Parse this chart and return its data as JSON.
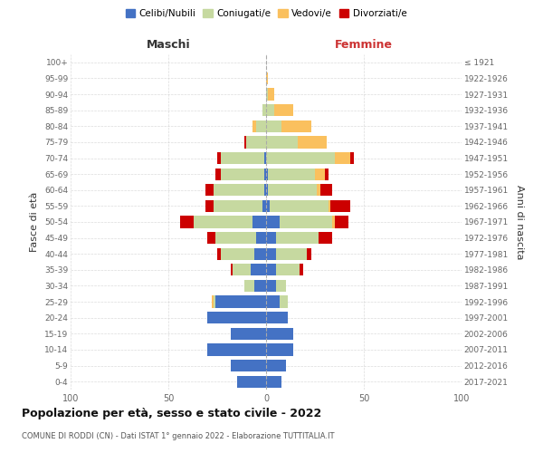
{
  "age_groups": [
    "0-4",
    "5-9",
    "10-14",
    "15-19",
    "20-24",
    "25-29",
    "30-34",
    "35-39",
    "40-44",
    "45-49",
    "50-54",
    "55-59",
    "60-64",
    "65-69",
    "70-74",
    "75-79",
    "80-84",
    "85-89",
    "90-94",
    "95-99",
    "100+"
  ],
  "birth_years": [
    "2017-2021",
    "2012-2016",
    "2007-2011",
    "2002-2006",
    "1997-2001",
    "1992-1996",
    "1987-1991",
    "1982-1986",
    "1977-1981",
    "1972-1976",
    "1967-1971",
    "1962-1966",
    "1957-1961",
    "1952-1956",
    "1947-1951",
    "1942-1946",
    "1937-1941",
    "1932-1936",
    "1927-1931",
    "1922-1926",
    "≤ 1921"
  ],
  "maschi": {
    "celibi": [
      15,
      18,
      30,
      18,
      30,
      26,
      6,
      8,
      6,
      5,
      7,
      2,
      1,
      1,
      1,
      0,
      0,
      0,
      0,
      0,
      0
    ],
    "coniugati": [
      0,
      0,
      0,
      0,
      0,
      1,
      5,
      9,
      17,
      21,
      30,
      25,
      26,
      22,
      22,
      10,
      5,
      2,
      0,
      0,
      0
    ],
    "vedovi": [
      0,
      0,
      0,
      0,
      0,
      1,
      0,
      0,
      0,
      0,
      0,
      0,
      0,
      0,
      0,
      0,
      2,
      0,
      0,
      0,
      0
    ],
    "divorziati": [
      0,
      0,
      0,
      0,
      0,
      0,
      0,
      1,
      2,
      4,
      7,
      4,
      4,
      3,
      2,
      1,
      0,
      0,
      0,
      0,
      0
    ]
  },
  "femmine": {
    "nubili": [
      8,
      10,
      14,
      14,
      11,
      7,
      5,
      5,
      5,
      5,
      7,
      2,
      1,
      1,
      0,
      0,
      0,
      0,
      0,
      0,
      0
    ],
    "coniugate": [
      0,
      0,
      0,
      0,
      0,
      4,
      5,
      12,
      16,
      22,
      27,
      30,
      25,
      24,
      35,
      16,
      8,
      4,
      1,
      0,
      0
    ],
    "vedove": [
      0,
      0,
      0,
      0,
      0,
      0,
      0,
      0,
      0,
      0,
      1,
      1,
      2,
      5,
      8,
      15,
      15,
      10,
      3,
      1,
      0
    ],
    "divorziate": [
      0,
      0,
      0,
      0,
      0,
      0,
      0,
      2,
      2,
      7,
      7,
      10,
      6,
      2,
      2,
      0,
      0,
      0,
      0,
      0,
      0
    ]
  },
  "colors": {
    "celibi": "#4472c4",
    "coniugati": "#c6d9a0",
    "vedovi": "#fac05e",
    "divorziati": "#cc0000"
  },
  "title1": "Popolazione per età, sesso e stato civile - 2022",
  "title2": "COMUNE DI RODDI (CN) - Dati ISTAT 1° gennaio 2022 - Elaborazione TUTTITALIA.IT",
  "xlim": 100,
  "xlabel_left": "Maschi",
  "xlabel_right": "Femmine",
  "ylabel_left": "Fasce di età",
  "ylabel_right": "Anni di nascita",
  "legend_labels": [
    "Celibi/Nubili",
    "Coniugati/e",
    "Vedovi/e",
    "Divorziati/e"
  ],
  "bg": "#ffffff",
  "grid_color": "#cccccc",
  "tick_color": "#666666",
  "label_color": "#333333",
  "maschi_header_color": "#333333",
  "femmine_header_color": "#cc3333"
}
